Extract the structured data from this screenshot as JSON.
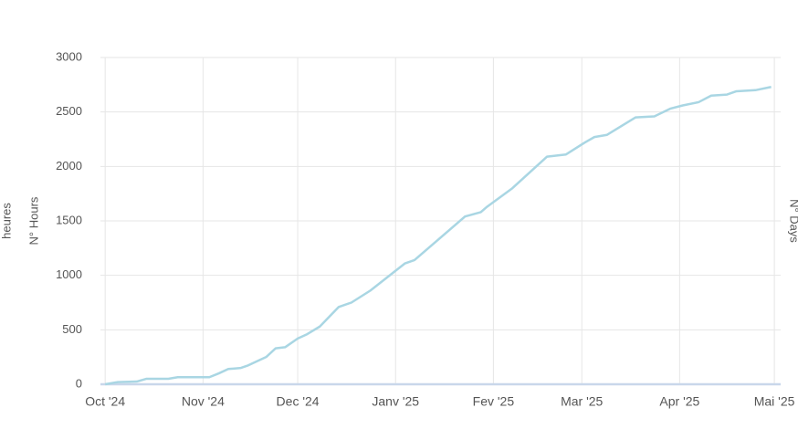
{
  "chart_data": {
    "type": "line",
    "y_axis_titles": [
      "heures",
      "N° Hours"
    ],
    "y2_axis_title": "N° Days",
    "xlim": [
      -1.5,
      214
    ],
    "xticks": [
      {
        "value": 0,
        "label": "Oct '24"
      },
      {
        "value": 31,
        "label": "Nov '24"
      },
      {
        "value": 61,
        "label": "Dec '24"
      },
      {
        "value": 92,
        "label": "Janv '25"
      },
      {
        "value": 123,
        "label": "Fev '25"
      },
      {
        "value": 151,
        "label": "Mar '25"
      },
      {
        "value": 182,
        "label": "Apr '25"
      },
      {
        "value": 212,
        "label": "Mai '25"
      }
    ],
    "ylim": [
      0,
      3000
    ],
    "yticks": [
      0,
      500,
      1000,
      1500,
      2000,
      2500,
      3000
    ],
    "grid": true,
    "series": [
      {
        "color": "#a9d6e3",
        "x": [
          0,
          4,
          10,
          13,
          20,
          23,
          33,
          36,
          39,
          43,
          45,
          51,
          54,
          57,
          61,
          64,
          68,
          74,
          78,
          84,
          95,
          98,
          114,
          119,
          121,
          129,
          140,
          146,
          152,
          155,
          159,
          168,
          174,
          179,
          183,
          188,
          192,
          197,
          200,
          206,
          211
        ],
        "values": [
          0,
          20,
          25,
          50,
          50,
          65,
          65,
          100,
          140,
          150,
          170,
          250,
          330,
          340,
          420,
          460,
          530,
          710,
          750,
          860,
          1110,
          1140,
          1540,
          1580,
          1630,
          1800,
          2090,
          2110,
          2220,
          2270,
          2290,
          2450,
          2460,
          2530,
          2560,
          2590,
          2650,
          2660,
          2690,
          2700,
          2730
        ]
      },
      {
        "color": "#c9d7ea",
        "x": [
          -1.5,
          214
        ],
        "values": [
          0,
          0
        ]
      }
    ]
  }
}
